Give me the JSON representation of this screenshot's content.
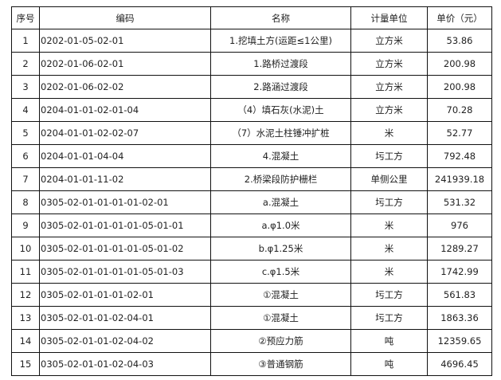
{
  "headers": [
    "序号",
    "编码",
    "名称",
    "计量单位",
    "单价（元）"
  ],
  "rows": [
    [
      "1",
      "0202-01-05-02-01",
      "1.挖填土方(运距≤1公里)",
      "立方米",
      "53.86"
    ],
    [
      "2",
      "0202-01-06-02-01",
      "1.路桥过渡段",
      "立方米",
      "200.98"
    ],
    [
      "3",
      "0202-01-06-02-02",
      "2.路涵过渡段",
      "立方米",
      "200.98"
    ],
    [
      "4",
      "0204-01-01-02-01-04",
      "（4）填石灰(水泥)土",
      "立方米",
      "70.28"
    ],
    [
      "5",
      "0204-01-01-02-02-07",
      "（7）水泥土柱锤冲扩桩",
      "米",
      "52.77"
    ],
    [
      "6",
      "0204-01-01-04-04",
      "4.混凝土",
      "圬工方",
      "792.48"
    ],
    [
      "7",
      "0204-01-01-11-02",
      "2.桥梁段防护栅栏",
      "单侧公里",
      "241939.18"
    ],
    [
      "8",
      "0305-02-01-01-01-01-02-01",
      "a.混凝土",
      "圬工方",
      "531.32"
    ],
    [
      "9",
      "0305-02-01-01-01-01-05-01-01",
      "a.φ1.0米",
      "米",
      "976"
    ],
    [
      "10",
      "0305-02-01-01-01-01-05-01-02",
      "b.φ1.25米",
      "米",
      "1289.27"
    ],
    [
      "11",
      "0305-02-01-01-01-01-05-01-03",
      "c.φ1.5米",
      "米",
      "1742.99"
    ],
    [
      "12",
      "0305-02-01-01-01-02-01",
      "①混凝土",
      "圬工方",
      "561.83"
    ],
    [
      "13",
      "0305-02-01-01-02-04-01",
      "①混凝土",
      "圬工方",
      "1863.36"
    ],
    [
      "14",
      "0305-02-01-01-02-04-02",
      "②预应力筋",
      "吨",
      "12359.65"
    ],
    [
      "15",
      "0305-02-01-01-02-04-03",
      "③普通钢筋",
      "吨",
      "4696.45"
    ]
  ]
}
